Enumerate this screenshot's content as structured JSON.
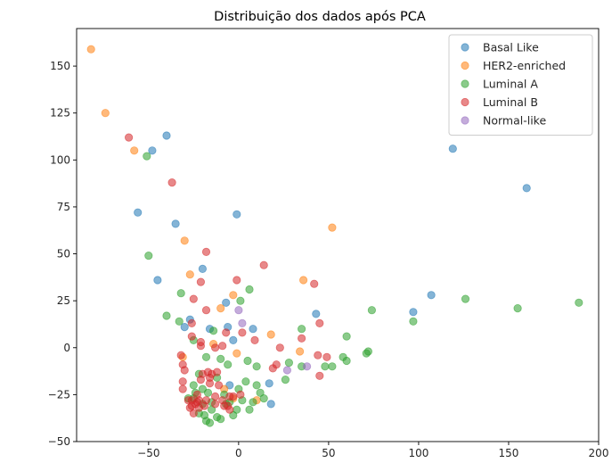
{
  "chart_data": {
    "type": "scatter",
    "title": "Distribuição dos dados após PCA",
    "xlabel": "",
    "ylabel": "",
    "xlim": [
      -90,
      200
    ],
    "ylim": [
      -50,
      170
    ],
    "xticks": [
      -50,
      0,
      50,
      100,
      150,
      200
    ],
    "yticks": [
      -50,
      -25,
      0,
      25,
      50,
      75,
      100,
      125,
      150
    ],
    "grid": false,
    "legend_position": "top-right",
    "series": [
      {
        "name": "Basal Like",
        "color": "#1f77b4",
        "points": [
          [
            -40,
            113
          ],
          [
            -48,
            105
          ],
          [
            -56,
            72
          ],
          [
            -35,
            66
          ],
          [
            -1,
            71
          ],
          [
            119,
            106
          ],
          [
            160,
            85
          ],
          [
            -20,
            42
          ],
          [
            -45,
            36
          ],
          [
            -7,
            24
          ],
          [
            -27,
            15
          ],
          [
            -30,
            11
          ],
          [
            -6,
            11
          ],
          [
            -16,
            10
          ],
          [
            8,
            10
          ],
          [
            -3,
            4
          ],
          [
            43,
            18
          ],
          [
            97,
            19
          ],
          [
            107,
            28
          ],
          [
            -5,
            -20
          ],
          [
            17,
            -19
          ],
          [
            18,
            -30
          ]
        ]
      },
      {
        "name": "HER2-enriched",
        "color": "#ff7f0e",
        "points": [
          [
            -82,
            159
          ],
          [
            -74,
            125
          ],
          [
            -58,
            105
          ],
          [
            -30,
            57
          ],
          [
            52,
            64
          ],
          [
            -27,
            39
          ],
          [
            -10,
            21
          ],
          [
            -3,
            28
          ],
          [
            36,
            36
          ],
          [
            -14,
            2
          ],
          [
            -31,
            -5
          ],
          [
            -1,
            -3
          ],
          [
            18,
            7
          ],
          [
            34,
            -2
          ],
          [
            -3,
            -27
          ],
          [
            10,
            -28
          ],
          [
            -8,
            -22
          ]
        ]
      },
      {
        "name": "Luminal A",
        "color": "#2ca02c",
        "points": [
          [
            -51,
            102
          ],
          [
            -50,
            49
          ],
          [
            -40,
            17
          ],
          [
            -33,
            14
          ],
          [
            -32,
            29
          ],
          [
            6,
            31
          ],
          [
            1,
            25
          ],
          [
            -25,
            4
          ],
          [
            -14,
            9
          ],
          [
            -18,
            -5
          ],
          [
            -10,
            -6
          ],
          [
            -6,
            -9
          ],
          [
            5,
            -7
          ],
          [
            10,
            -10
          ],
          [
            -22,
            -14
          ],
          [
            -12,
            -16
          ],
          [
            -17,
            -24
          ],
          [
            -8,
            -25
          ],
          [
            -20,
            -30
          ],
          [
            -25,
            -27
          ],
          [
            -15,
            -33
          ],
          [
            -22,
            -35
          ],
          [
            -19,
            -36
          ],
          [
            -12,
            -37
          ],
          [
            -7,
            -30
          ],
          [
            -3,
            -36
          ],
          [
            -16,
            -40
          ],
          [
            -18,
            -39
          ],
          [
            0,
            -22
          ],
          [
            4,
            -18
          ],
          [
            10,
            -20
          ],
          [
            12,
            -24
          ],
          [
            14,
            -27
          ],
          [
            8,
            -29
          ],
          [
            -25,
            -20
          ],
          [
            -20,
            -22
          ],
          [
            2,
            -28
          ],
          [
            6,
            -33
          ],
          [
            26,
            -17
          ],
          [
            28,
            -8
          ],
          [
            35,
            -10
          ],
          [
            35,
            10
          ],
          [
            48,
            -10
          ],
          [
            52,
            -10
          ],
          [
            58,
            -5
          ],
          [
            60,
            -7
          ],
          [
            60,
            6
          ],
          [
            72,
            -2
          ],
          [
            71,
            -3
          ],
          [
            74,
            20
          ],
          [
            97,
            14
          ],
          [
            126,
            26
          ],
          [
            155,
            21
          ],
          [
            189,
            24
          ],
          [
            -28,
            -27
          ],
          [
            -15,
            -29
          ],
          [
            -5,
            -29
          ],
          [
            -1,
            -33
          ],
          [
            -24,
            -24
          ],
          [
            -10,
            -38
          ]
        ]
      },
      {
        "name": "Luminal B",
        "color": "#d62728",
        "points": [
          [
            -61,
            112
          ],
          [
            -37,
            88
          ],
          [
            -18,
            51
          ],
          [
            -1,
            36
          ],
          [
            14,
            44
          ],
          [
            -21,
            35
          ],
          [
            -25,
            26
          ],
          [
            -18,
            20
          ],
          [
            -26,
            13
          ],
          [
            -7,
            8
          ],
          [
            2,
            8
          ],
          [
            9,
            4
          ],
          [
            -26,
            6
          ],
          [
            -21,
            3
          ],
          [
            -21,
            1
          ],
          [
            -13,
            0
          ],
          [
            -9,
            1
          ],
          [
            23,
            0
          ],
          [
            42,
            34
          ],
          [
            45,
            13
          ],
          [
            -32,
            -4
          ],
          [
            -31,
            -9
          ],
          [
            -30,
            -12
          ],
          [
            -31,
            -18
          ],
          [
            -31,
            -22
          ],
          [
            -17,
            -13
          ],
          [
            -15,
            -14
          ],
          [
            -11,
            -20
          ],
          [
            -16,
            -19
          ],
          [
            -21,
            -17
          ],
          [
            -23,
            -25
          ],
          [
            -23,
            -29
          ],
          [
            -22,
            -32
          ],
          [
            -26,
            -28
          ],
          [
            -26,
            -31
          ],
          [
            -28,
            -28
          ],
          [
            -27,
            -32
          ],
          [
            -25,
            -35
          ],
          [
            -13,
            -26
          ],
          [
            -9,
            -28
          ],
          [
            -8,
            -31
          ],
          [
            -5,
            -33
          ],
          [
            -3,
            -26
          ],
          [
            1,
            -25
          ],
          [
            -20,
            -14
          ],
          [
            -16,
            -16
          ],
          [
            -12,
            -13
          ],
          [
            -18,
            -28
          ],
          [
            -13,
            -30
          ],
          [
            -6,
            -31
          ],
          [
            -22,
            -28
          ],
          [
            -24,
            -30
          ],
          [
            21,
            -9
          ],
          [
            19,
            -11
          ],
          [
            35,
            5
          ],
          [
            44,
            -4
          ],
          [
            49,
            -5
          ],
          [
            45,
            -15
          ],
          [
            -5,
            -26
          ],
          [
            -19,
            -31
          ]
        ]
      },
      {
        "name": "Normal-like",
        "color": "#9467bd",
        "points": [
          [
            0,
            20
          ],
          [
            2,
            13
          ],
          [
            27,
            -12
          ],
          [
            38,
            -10
          ]
        ]
      }
    ]
  }
}
